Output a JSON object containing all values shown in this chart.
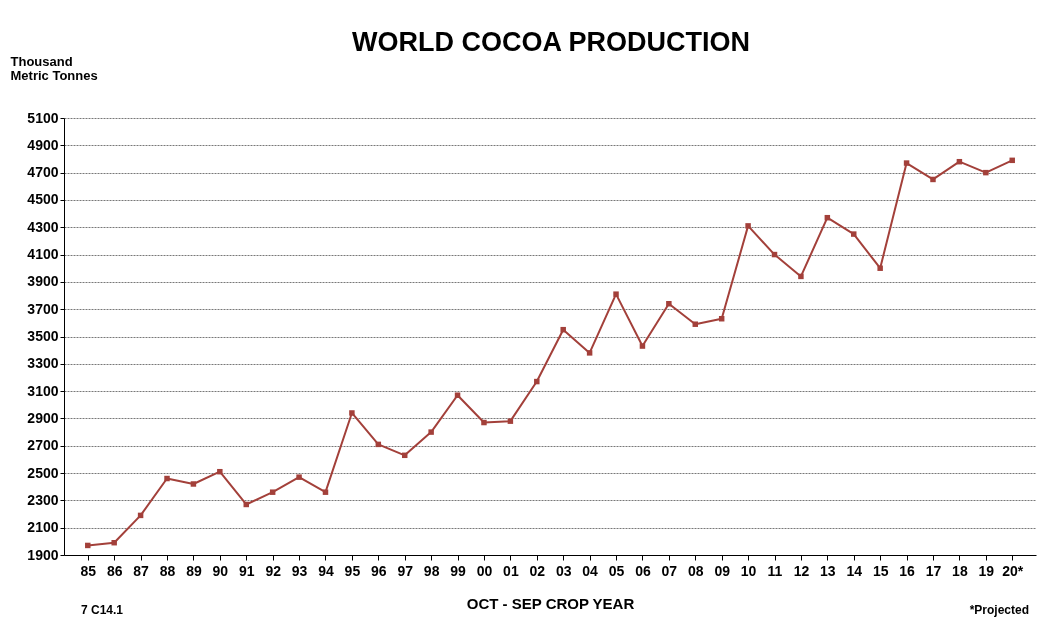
{
  "chart_data": {
    "type": "line",
    "title": "WORLD  COCOA  PRODUCTION",
    "ylabel": "Thousand Metric Tonnes",
    "xlabel": "OCT -  SEP  CROP  YEAR",
    "categories": [
      "85",
      "86",
      "87",
      "88",
      "89",
      "90",
      "91",
      "92",
      "93",
      "94",
      "95",
      "96",
      "97",
      "98",
      "99",
      "00",
      "01",
      "02",
      "03",
      "04",
      "05",
      "06",
      "07",
      "08",
      "09",
      "10",
      "11",
      "12",
      "13",
      "14",
      "15",
      "16",
      "17",
      "18",
      "19",
      "20*"
    ],
    "series": [
      {
        "color": "#a3403a",
        "values": [
          1970,
          1990,
          2190,
          2460,
          2420,
          2510,
          2270,
          2360,
          2470,
          2360,
          2940,
          2710,
          2630,
          2800,
          3070,
          2870,
          2880,
          3170,
          3550,
          3380,
          3810,
          3430,
          3740,
          3590,
          3630,
          4310,
          4100,
          3940,
          4370,
          4250,
          4000,
          4770,
          4650,
          4780,
          4700,
          4790
        ]
      }
    ],
    "ylim": [
      1900,
      5100
    ],
    "yticks": [
      1900,
      2100,
      2300,
      2500,
      2700,
      2900,
      3100,
      3300,
      3500,
      3700,
      3900,
      4100,
      4300,
      4500,
      4700,
      4900,
      5100
    ],
    "grid": "y",
    "marker": "square",
    "line_style": "solid",
    "annotations": [
      "7 C14.1",
      "*Projected"
    ]
  }
}
